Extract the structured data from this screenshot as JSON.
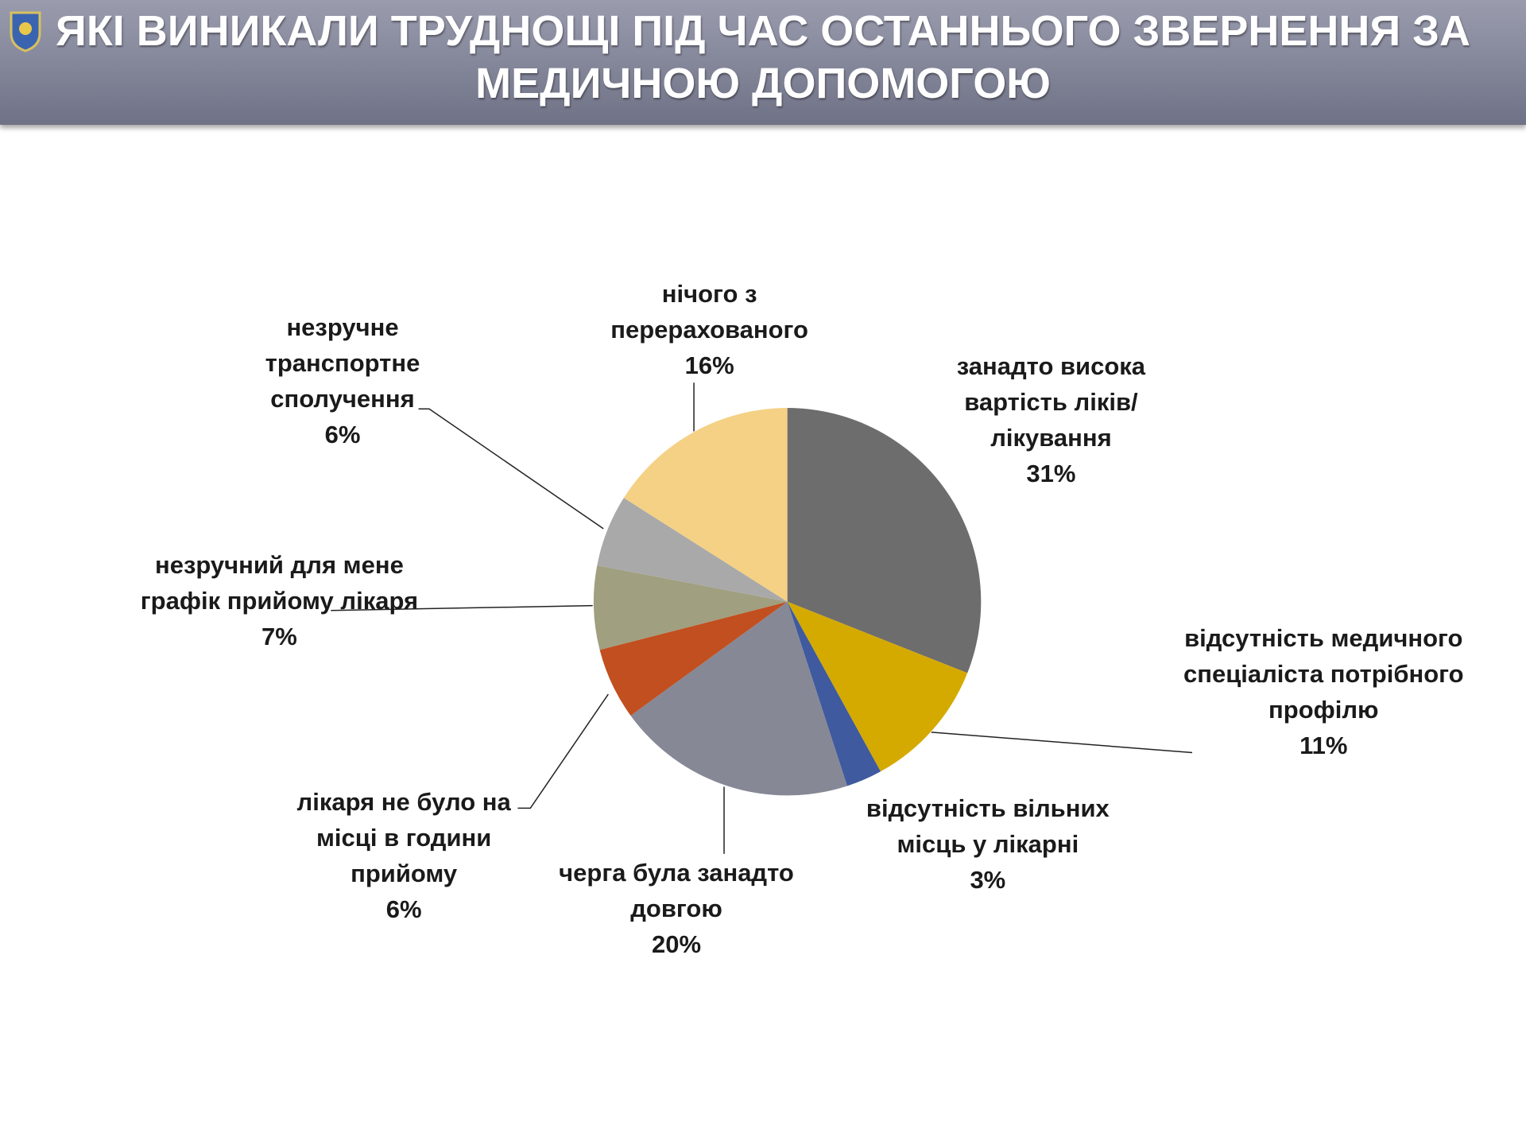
{
  "chart_data": {
    "type": "pie",
    "title": "ЯКІ ВИНИКАЛИ ТРУДНОЩІ ПІД ЧАС ОСТАННЬОГО ЗВЕРНЕННЯ ЗА МЕДИЧНОЮ ДОПОМОГОЮ",
    "categories": [
      "занадто висока вартість ліків/лікування",
      "відсутність медичного спеціаліста потрібного профілю",
      "відсутність вільних місць у лікарні",
      "черга була занадто довгою",
      "лікаря не було на місці в години прийому",
      "незручний для мене графік прийому лікаря",
      "незручне транспортне сполучення",
      "нічого з перерахованого"
    ],
    "values": [
      31,
      11,
      3,
      20,
      6,
      7,
      6,
      16
    ],
    "value_labels": [
      "31%",
      "11%",
      "3%",
      "20%",
      "6%",
      "7%",
      "6%",
      "16%"
    ],
    "colors": [
      "#6d6d6d",
      "#d4aa00",
      "#3f5a9e",
      "#868896",
      "#c24f1f",
      "#a09f7f",
      "#a9a9a9",
      "#f5d185"
    ]
  }
}
